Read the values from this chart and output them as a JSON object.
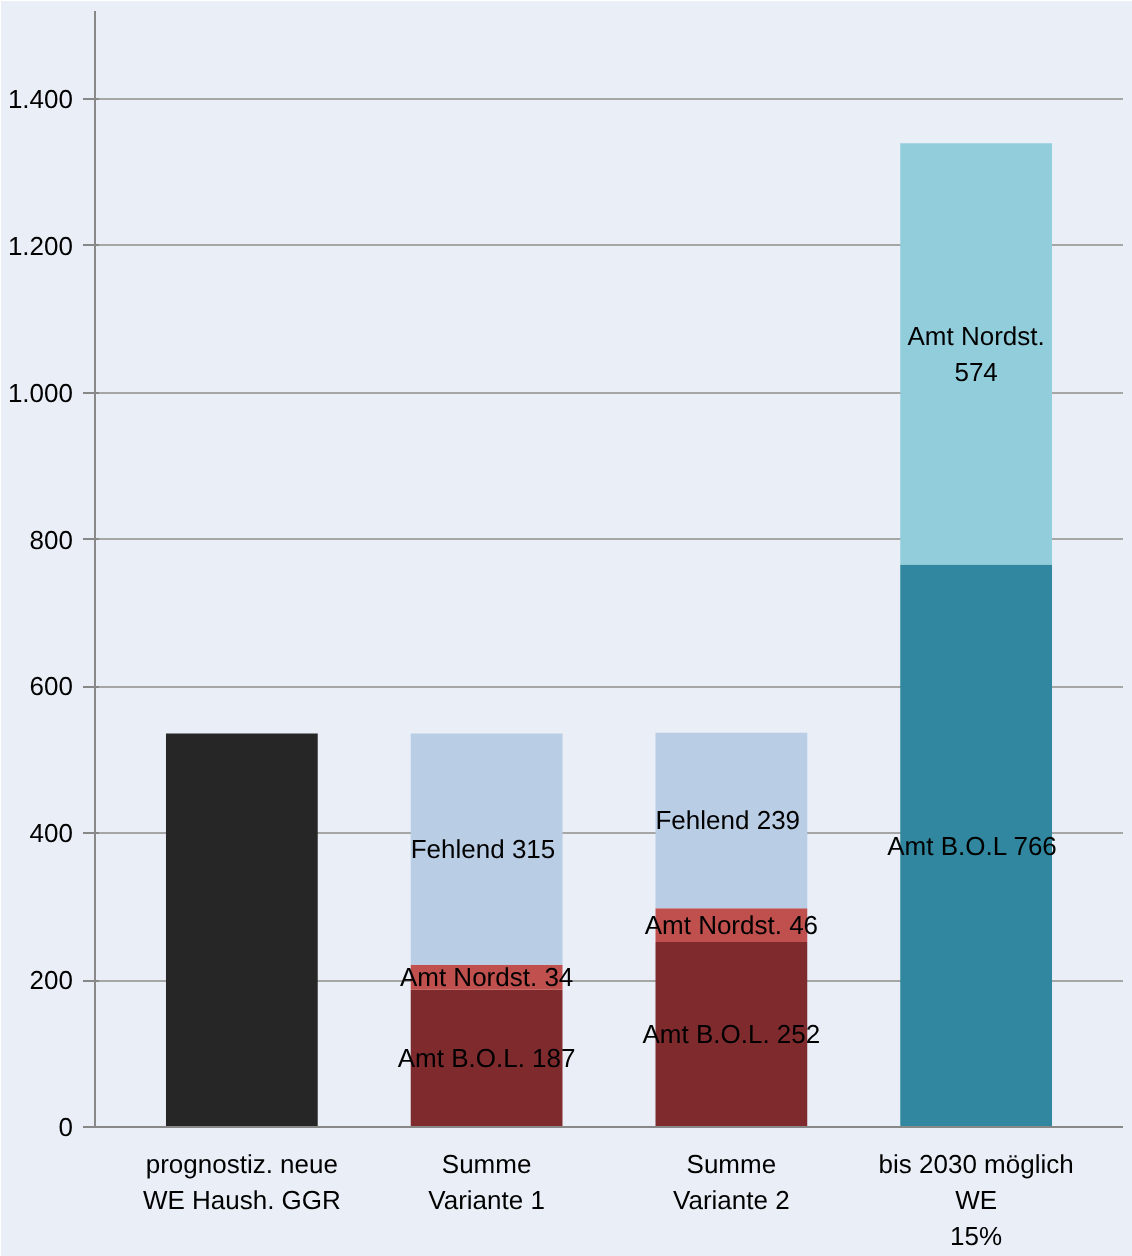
{
  "chart_data": {
    "type": "bar",
    "stacked": true,
    "categories": [
      "prognostiz. neue\nWE Haush. GGR",
      "Summe\nVariante 1",
      "Summe\nVariante 2",
      "bis 2030 möglich\nWE\n15%"
    ],
    "series": [
      {
        "colors": [
          "#262626",
          "#7f2b2e",
          "#7f2b2e",
          "#30879f"
        ],
        "values": [
          536,
          187,
          252,
          766
        ],
        "value_labels": [
          null,
          "Amt B.O.L. 187",
          "Amt B.O.L. 252",
          "Amt B.O.L  766"
        ]
      },
      {
        "colors": [
          null,
          "#c0504d",
          "#c0504d",
          "#92cddc"
        ],
        "values": [
          null,
          34,
          46,
          574
        ],
        "value_labels": [
          null,
          "Amt Nordst. 34",
          "Amt Nordst. 46",
          "Amt Nordst.\n574"
        ]
      },
      {
        "color": "#b9cde5",
        "values": [
          null,
          315,
          239,
          null
        ],
        "value_labels": [
          null,
          "Fehlend  315",
          "Fehlend  239",
          null
        ]
      }
    ],
    "ylim": [
      0,
      1520
    ],
    "yticks": [
      0,
      {
        "value": 200,
        "label": "200"
      },
      {
        "value": 400,
        "label": "400"
      },
      {
        "value": 600,
        "label": "600"
      },
      {
        "value": 800,
        "label": "800"
      },
      {
        "value": 1000,
        "label": "1.000"
      },
      {
        "value": 1200,
        "label": "1.200"
      },
      {
        "value": 1400,
        "label": "1.400"
      }
    ],
    "grid": "y"
  }
}
